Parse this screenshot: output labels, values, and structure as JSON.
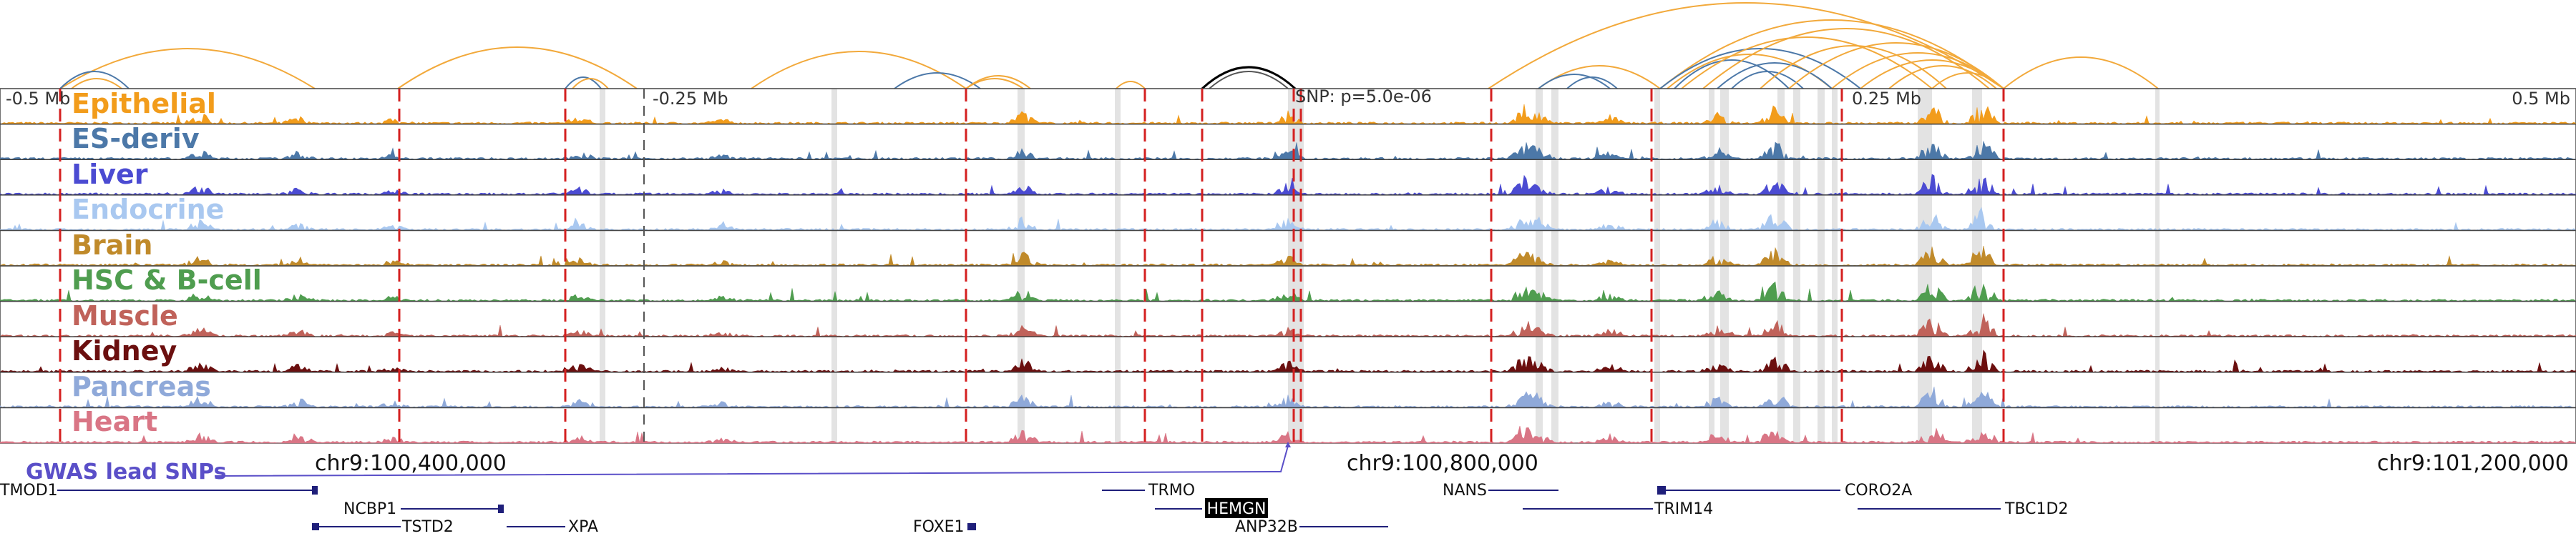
{
  "ruler": {
    "left_label": "-0.5 Mb",
    "mid_left_label": "-0.25 Mb",
    "snp_label": "SNP: p=5.0e-06",
    "mid_right_label": "0.25 Mb",
    "right_label": "0.5 Mb"
  },
  "tracks": [
    {
      "name": "Epithelial",
      "color": "#f29c1b"
    },
    {
      "name": "ES-deriv",
      "color": "#4c78a8"
    },
    {
      "name": "Liver",
      "color": "#4b4bd2"
    },
    {
      "name": "Endocrine",
      "color": "#a9c8f0"
    },
    {
      "name": "Brain",
      "color": "#c08a2a"
    },
    {
      "name": "HSC & B-cell",
      "color": "#4f9d4f"
    },
    {
      "name": "Muscle",
      "color": "#c0625a"
    },
    {
      "name": "Kidney",
      "color": "#6b0f0f"
    },
    {
      "name": "Pancreas",
      "color": "#8fa9d9"
    },
    {
      "name": "Heart",
      "color": "#d97585"
    }
  ],
  "gwas": {
    "label": "GWAS lead SNPs",
    "color": "#5a4fc8"
  },
  "coordinates": {
    "left": "chr9:100,400,000",
    "middle": "chr9:100,800,000",
    "right": "chr9:101,200,000"
  },
  "genes": [
    {
      "name": "TMOD1",
      "highlight": false
    },
    {
      "name": "NCBP1",
      "highlight": false
    },
    {
      "name": "TSTD2",
      "highlight": false
    },
    {
      "name": "XPA",
      "highlight": false
    },
    {
      "name": "FOXE1",
      "highlight": false
    },
    {
      "name": "TRMO",
      "highlight": false
    },
    {
      "name": "HEMGN",
      "highlight": true
    },
    {
      "name": "ANP32B",
      "highlight": false
    },
    {
      "name": "NANS",
      "highlight": false
    },
    {
      "name": "TRIM14",
      "highlight": false
    },
    {
      "name": "CORO2A",
      "highlight": false
    },
    {
      "name": "TBC1D2",
      "highlight": false
    }
  ],
  "colors": {
    "arc_default": "#f2a93b",
    "arc_alt": "#4c78a8",
    "arc_lead": "#000000",
    "dashed_marker": "#d42020",
    "shade": "#d9d9d9",
    "gene": "#1f1f7a"
  }
}
